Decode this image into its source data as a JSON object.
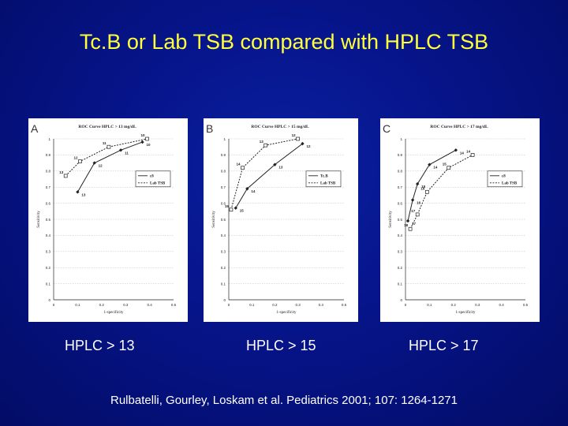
{
  "slide": {
    "title": "Tc.B or Lab TSB compared with HPLC TSB",
    "captions": [
      "HPLC > 13",
      "HPLC > 15",
      "HPLC > 17"
    ],
    "citation": "Rulbatelli, Gourley, Loskam et al.  Pediatrics 2001; 107: 1264-1271"
  },
  "colors": {
    "background": "#061489",
    "title": "#ffff3a",
    "text": "#ffffff",
    "panel": "#ffffff",
    "ink": "#222222"
  },
  "chart_data": [
    {
      "type": "line",
      "panel_letter": "A",
      "title": "ROC Curve HPLC > 13 mg/dL",
      "xlabel": "1-specificity",
      "ylabel": "Sensitivity",
      "xlim": [
        0,
        0.5
      ],
      "ylim": [
        0,
        1
      ],
      "xticks": [
        "0",
        "0.1",
        "0.2",
        "0.3",
        "0.4",
        "0.5"
      ],
      "yticks": [
        "0",
        "0.1",
        "0.2",
        "0.3",
        "0.4",
        "0.5",
        "0.6",
        "0.7",
        "0.8",
        "0.9",
        "1"
      ],
      "grid": true,
      "legend": "right",
      "series": [
        {
          "name": "c8",
          "style": "solid",
          "x": [
            0.1,
            0.17,
            0.28,
            0.37
          ],
          "y": [
            0.67,
            0.85,
            0.93,
            0.98
          ],
          "labels": [
            "13",
            "12",
            "11",
            "10"
          ]
        },
        {
          "name": "Lab TSB",
          "style": "dashed",
          "x": [
            0.05,
            0.11,
            0.23,
            0.39
          ],
          "y": [
            0.77,
            0.86,
            0.95,
            1.0
          ],
          "labels": [
            "13",
            "12",
            "11",
            "10"
          ]
        }
      ]
    },
    {
      "type": "line",
      "panel_letter": "B",
      "title": "ROC Curve HPLC > 15 mg/dL",
      "xlabel": "1-specificity",
      "ylabel": "Sensitivity",
      "xlim": [
        0,
        0.5
      ],
      "ylim": [
        0,
        1
      ],
      "xticks": [
        "0",
        "0.1",
        "0.2",
        "0.3",
        "0.4",
        "0.5"
      ],
      "yticks": [
        "0",
        "0.1",
        "0.2",
        "0.3",
        "0.4",
        "0.5",
        "0.6",
        "0.7",
        "0.8",
        "0.9",
        "1"
      ],
      "grid": true,
      "legend": "right",
      "series": [
        {
          "name": "Tc.B",
          "style": "solid",
          "x": [
            0.03,
            0.08,
            0.2,
            0.32
          ],
          "y": [
            0.57,
            0.69,
            0.84,
            0.97
          ],
          "labels": [
            "15",
            "14",
            "13",
            "12"
          ]
        },
        {
          "name": "Lab TSB",
          "style": "dashed",
          "x": [
            0.01,
            0.06,
            0.16,
            0.3
          ],
          "y": [
            0.56,
            0.82,
            0.96,
            1.0
          ],
          "labels": [
            "15",
            "14",
            "13",
            "12"
          ]
        }
      ]
    },
    {
      "type": "line",
      "panel_letter": "C",
      "title": "ROC Curve HPLC > 17 mg/dL",
      "xlabel": "1-specificity",
      "ylabel": "Sensitivity",
      "xlim": [
        0,
        0.5
      ],
      "ylim": [
        0,
        1
      ],
      "xticks": [
        "0",
        "0.1",
        "0.2",
        "0.3",
        "0.4",
        "0.5"
      ],
      "yticks": [
        "0",
        "0.1",
        "0.2",
        "0.3",
        "0.4",
        "0.5",
        "0.6",
        "0.7",
        "0.8",
        "0.9",
        "1"
      ],
      "grid": true,
      "legend": "right",
      "series": [
        {
          "name": "c8",
          "style": "solid",
          "x": [
            0.01,
            0.03,
            0.05,
            0.1,
            0.21
          ],
          "y": [
            0.49,
            0.62,
            0.72,
            0.84,
            0.93
          ],
          "labels": [
            "17",
            "16",
            "15",
            "14",
            "14"
          ]
        },
        {
          "name": "Lab TSB",
          "style": "dashed",
          "x": [
            0.02,
            0.05,
            0.09,
            0.18,
            0.28
          ],
          "y": [
            0.44,
            0.53,
            0.67,
            0.82,
            0.9
          ],
          "labels": [
            "18",
            "17",
            "16",
            "15",
            "14"
          ]
        }
      ]
    }
  ]
}
